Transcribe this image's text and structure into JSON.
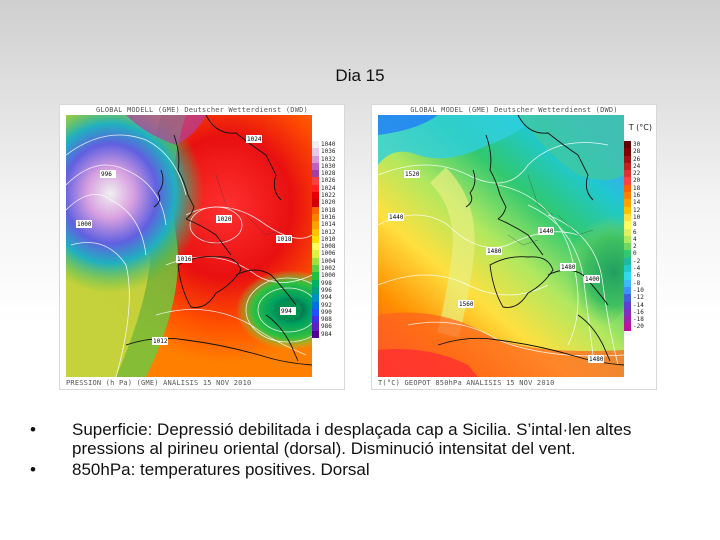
{
  "slide": {
    "title": "Dia 15",
    "bullets": [
      "Superficie: Depressió debilitada i desplaçada cap a Sicilia. S’intal·len altes pressions al pirineu oriental (dorsal). Disminució intensitat del vent.",
      "850hPa: temperatures positives. Dorsal"
    ],
    "bullet_mark": "•"
  },
  "maps": {
    "surface": {
      "header": "GLOBAL MODELL (GME) Deutscher Wetterdienst (DWD)",
      "footer": "PRESSION (h Pa) (GME)   ANÁLISIS 15 NOV 2010",
      "legend_values": [
        "1040",
        "1036",
        "1032",
        "1030",
        "1028",
        "1026",
        "1024",
        "1022",
        "1020",
        "1018",
        "1016",
        "1014",
        "1012",
        "1010",
        "1008",
        "1006",
        "1004",
        "1002",
        "1000",
        "998",
        "996",
        "994",
        "992",
        "990",
        "988",
        "986",
        "984"
      ],
      "labels": [
        "996",
        "1000",
        "1024",
        "1020",
        "1018",
        "1016",
        "994",
        "1012"
      ]
    },
    "t850": {
      "header": "GLOBAL MODEL (GME) Deutscher Wetterdienst (DWD)",
      "footer": "T(°C) GEOPOT 850hPa   ANÁLISIS 15 NOV 2010",
      "legend_title": "T (°C)",
      "legend_values": [
        "30",
        "28",
        "26",
        "24",
        "22",
        "20",
        "18",
        "16",
        "14",
        "12",
        "10",
        "8",
        "6",
        "4",
        "2",
        "0",
        "-2",
        "-4",
        "-6",
        "-8",
        "-10",
        "-12",
        "-14",
        "-16",
        "-18",
        "-20"
      ],
      "labels": [
        "1520",
        "1440",
        "1480",
        "1560",
        "1440",
        "1480",
        "1400",
        "1480"
      ]
    }
  },
  "colors": {
    "surface_scale": [
      "#f0f0f0",
      "#e8c8e8",
      "#d898d8",
      "#c060c0",
      "#a040a0",
      "#ff4040",
      "#ff2020",
      "#e80000",
      "#d00000",
      "#ff6000",
      "#ff8000",
      "#ffa000",
      "#ffc000",
      "#ffe000",
      "#ffff60",
      "#e0f040",
      "#a0e040",
      "#60d040",
      "#20c040",
      "#00b060",
      "#00a080",
      "#0090c0",
      "#0070e0",
      "#2050ff",
      "#4030e0",
      "#6020c0",
      "#500090"
    ],
    "t850_scale": [
      "#600000",
      "#800000",
      "#a01010",
      "#c02020",
      "#e03030",
      "#ff4040",
      "#ff6000",
      "#ff8000",
      "#ffa000",
      "#ffc000",
      "#ffe040",
      "#ffff60",
      "#e0f060",
      "#b0e860",
      "#70d860",
      "#30c870",
      "#20b8a0",
      "#20c8d0",
      "#30d8f0",
      "#40b8ff",
      "#4090ff",
      "#4060e0",
      "#6040d0",
      "#8030c0",
      "#a020b0",
      "#c010a0"
    ]
  }
}
